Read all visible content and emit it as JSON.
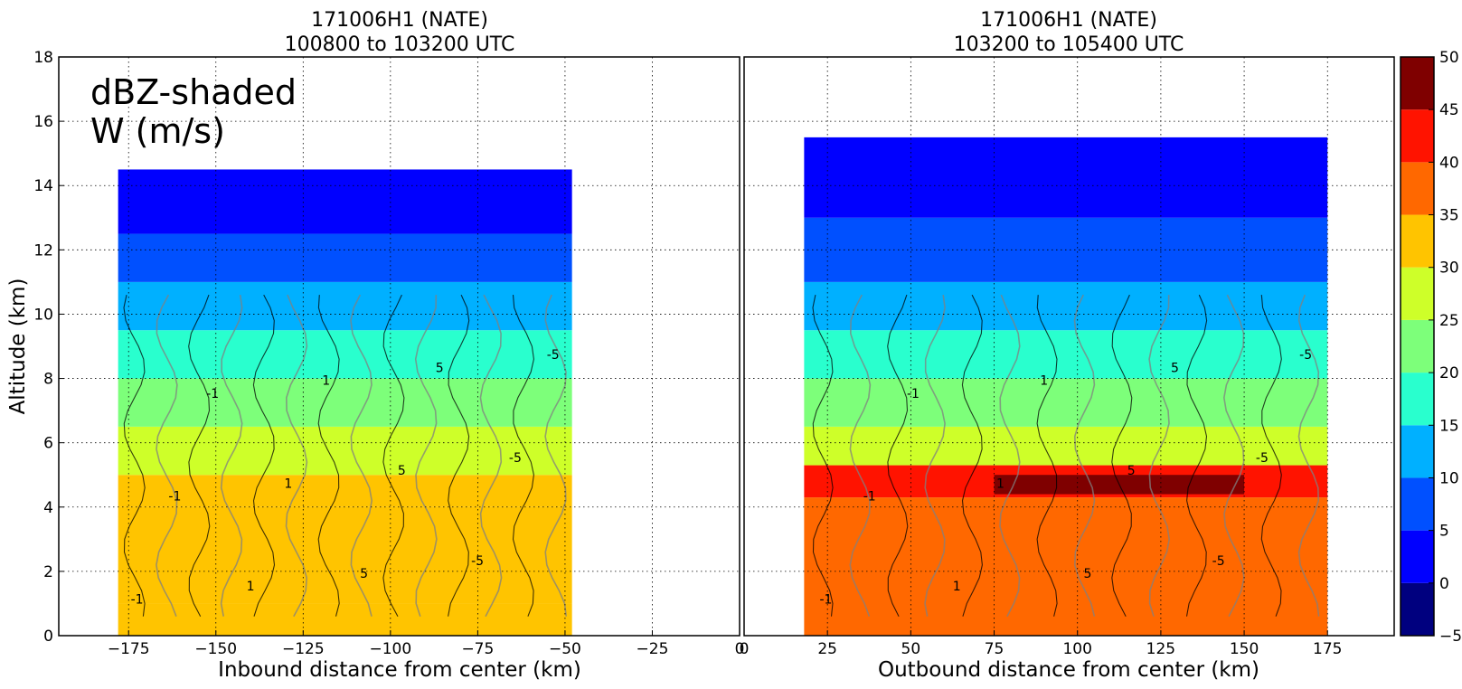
{
  "chart_data": [
    {
      "type": "heatmap",
      "title": "171006H1 (NATE)",
      "subtitle": "100800 to 103200 UTC",
      "xlabel": "Inbound distance from center (km)",
      "ylabel": "Altitude (km)",
      "annotation_lines": [
        "dBZ-shaded",
        "W (m/s)"
      ],
      "xlim": [
        -195,
        0
      ],
      "ylim": [
        0,
        18
      ],
      "xticks": [
        -175,
        -150,
        -125,
        -100,
        -75,
        -50,
        -25,
        0
      ],
      "xtick_labels": [
        "−175",
        "−150",
        "−125",
        "−100",
        "−75",
        "−50",
        "−25",
        "0"
      ],
      "yticks": [
        0,
        2,
        4,
        6,
        8,
        10,
        12,
        14,
        16,
        18
      ],
      "ytick_labels": [
        "0",
        "2",
        "4",
        "6",
        "8",
        "10",
        "12",
        "14",
        "16",
        "18"
      ],
      "grid": true,
      "data_extent_x": [
        -178,
        -48
      ],
      "reflectivity_profile": [
        {
          "alt": [
            0,
            1
          ],
          "dbz": 30
        },
        {
          "alt": [
            1,
            4
          ],
          "dbz": 30
        },
        {
          "alt": [
            4,
            5
          ],
          "dbz": 30
        },
        {
          "alt": [
            5,
            6.5
          ],
          "dbz": 25
        },
        {
          "alt": [
            6.5,
            8
          ],
          "dbz": 20
        },
        {
          "alt": [
            8,
            9.5
          ],
          "dbz": 15
        },
        {
          "alt": [
            9.5,
            11
          ],
          "dbz": 10
        },
        {
          "alt": [
            11,
            12.5
          ],
          "dbz": 5
        },
        {
          "alt": [
            12.5,
            14.5
          ],
          "dbz": 0
        }
      ],
      "contour_labels": [
        "-1",
        "1",
        "5",
        "-5"
      ]
    },
    {
      "type": "heatmap",
      "title": "171006H1 (NATE)",
      "subtitle": "103200 to 105400 UTC",
      "xlabel": "Outbound distance from center (km)",
      "ylabel": "",
      "xlim": [
        0,
        195
      ],
      "ylim": [
        0,
        18
      ],
      "xticks": [
        0,
        25,
        50,
        75,
        100,
        125,
        150,
        175
      ],
      "xtick_labels": [
        "0",
        "25",
        "50",
        "75",
        "100",
        "125",
        "150",
        "175"
      ],
      "grid": true,
      "data_extent_x": [
        18,
        175
      ],
      "bright_band": {
        "alt": 4.7,
        "x_range": [
          75,
          150
        ],
        "dbz": 45
      },
      "reflectivity_profile": [
        {
          "alt": [
            0,
            4.3
          ],
          "dbz": 35
        },
        {
          "alt": [
            4.3,
            5.3
          ],
          "dbz": 40
        },
        {
          "alt": [
            5.3,
            6.5
          ],
          "dbz": 25
        },
        {
          "alt": [
            6.5,
            8
          ],
          "dbz": 20
        },
        {
          "alt": [
            8,
            9.5
          ],
          "dbz": 15
        },
        {
          "alt": [
            9.5,
            11
          ],
          "dbz": 10
        },
        {
          "alt": [
            11,
            13
          ],
          "dbz": 5
        },
        {
          "alt": [
            13,
            15.5
          ],
          "dbz": 0
        }
      ],
      "contour_labels": [
        "-1",
        "1",
        "5",
        "-5"
      ]
    }
  ],
  "colorbar": {
    "levels": [
      -5,
      0,
      5,
      10,
      15,
      20,
      25,
      30,
      35,
      40,
      45,
      50
    ],
    "tick_labels": [
      "−5",
      "0",
      "5",
      "10",
      "15",
      "20",
      "25",
      "30",
      "35",
      "40",
      "45",
      "50"
    ],
    "colors": [
      "#00007f",
      "#0000ff",
      "#0050ff",
      "#00b0ff",
      "#29ffce",
      "#7dff7a",
      "#ceff29",
      "#ffc400",
      "#ff6800",
      "#ff1300",
      "#7f0000"
    ]
  }
}
